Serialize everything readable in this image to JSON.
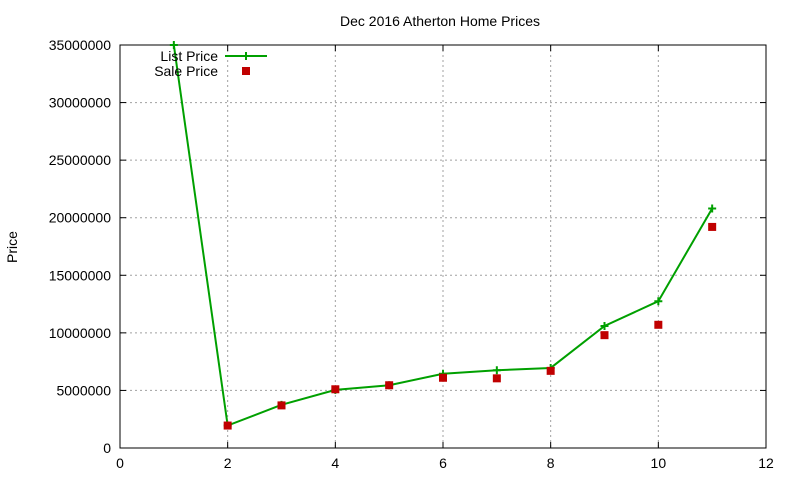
{
  "chart_data": {
    "type": "line",
    "title": "Dec 2016 Atherton Home Prices",
    "xlabel": "",
    "ylabel": "Price",
    "xlim": [
      0,
      12
    ],
    "ylim": [
      0,
      35000000
    ],
    "xticks": [
      0,
      2,
      4,
      6,
      8,
      10,
      12
    ],
    "yticks": [
      0,
      5000000,
      10000000,
      15000000,
      20000000,
      25000000,
      30000000,
      35000000
    ],
    "grid": true,
    "legend_position": "top-left",
    "series": [
      {
        "name": "List Price",
        "style": "line-with-plus-markers",
        "color": "#00a000",
        "x": [
          1,
          2,
          3,
          4,
          5,
          6,
          7,
          8,
          9,
          10,
          11
        ],
        "y": [
          35000000,
          1950000,
          3750000,
          5050000,
          5450000,
          6450000,
          6750000,
          6950000,
          10600000,
          12750000,
          20800000
        ]
      },
      {
        "name": "Sale Price",
        "style": "square-markers",
        "color": "#c00000",
        "x": [
          2,
          3,
          4,
          5,
          6,
          7,
          8,
          9,
          10,
          11
        ],
        "y": [
          1950000,
          3700000,
          5100000,
          5450000,
          6100000,
          6050000,
          6700000,
          9800000,
          10700000,
          19200000
        ]
      }
    ]
  }
}
